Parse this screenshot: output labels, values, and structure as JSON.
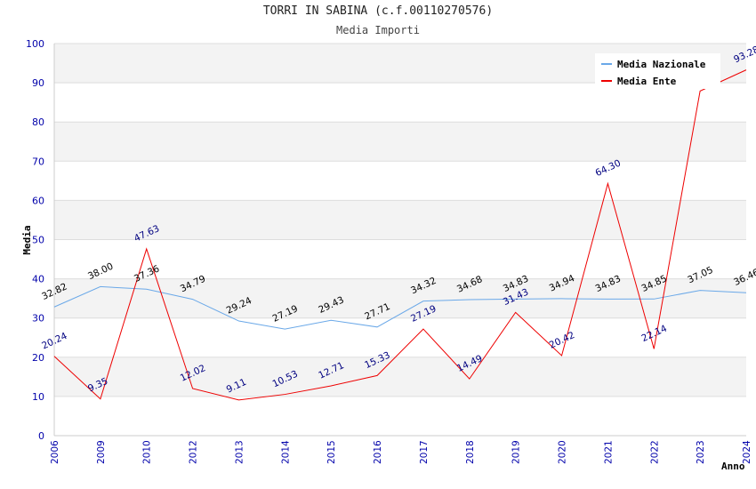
{
  "chart_data": {
    "type": "line",
    "title": "TORRI IN SABINA (c.f.00110270576)",
    "subtitle": "Media Importi",
    "xlabel": "Anno",
    "ylabel": "Media",
    "ylim": [
      0,
      100
    ],
    "yticks": [
      0,
      10,
      20,
      30,
      40,
      50,
      60,
      70,
      80,
      90,
      100
    ],
    "categories": [
      "2006",
      "2009",
      "2010",
      "2012",
      "2013",
      "2014",
      "2015",
      "2016",
      "2017",
      "2018",
      "2019",
      "2020",
      "2021",
      "2022",
      "2023",
      "2024"
    ],
    "series": [
      {
        "name": "Media Nazionale",
        "color": "#6aa8e8",
        "values": [
          32.82,
          38.0,
          37.36,
          34.79,
          29.24,
          27.19,
          29.43,
          27.71,
          34.32,
          34.68,
          34.83,
          34.94,
          34.83,
          34.85,
          37.05,
          36.46
        ],
        "labels": [
          "32.82",
          "38.00",
          "37.36",
          "34.79",
          "29.24",
          "27.19",
          "29.43",
          "27.71",
          "34.32",
          "34.68",
          "34.83",
          "34.94",
          "34.83",
          "34.85",
          "37.05",
          "36.46"
        ]
      },
      {
        "name": "Media Ente",
        "color": "#ee0000",
        "values": [
          20.24,
          9.35,
          47.63,
          12.02,
          9.11,
          10.53,
          12.71,
          15.33,
          27.19,
          14.49,
          31.43,
          20.42,
          64.3,
          22.14,
          87.9,
          93.28
        ],
        "labels": [
          "20.24",
          "9.35",
          "47.63",
          "12.02",
          "9.11",
          "10.53",
          "12.71",
          "15.33",
          "27.19",
          "14.49",
          "31.43",
          "20.42",
          "64.30",
          "22.14",
          "",
          "93.28"
        ]
      }
    ],
    "grid": true,
    "legend": "top-right"
  }
}
